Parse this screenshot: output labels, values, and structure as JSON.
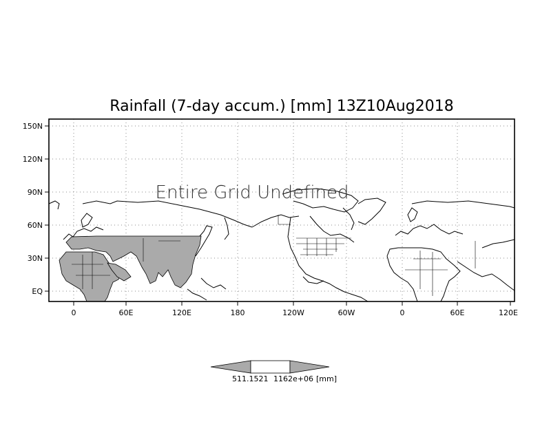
{
  "map": {
    "title": "Rainfall (7-day accum.) [mm] 13Z10Aug2018",
    "overlay_text": "Entire Grid Undefined",
    "lat_labels": [
      "150N",
      "120N",
      "90N",
      "60N",
      "30N",
      "EQ"
    ],
    "lon_labels": [
      "0",
      "60E",
      "120E",
      "180",
      "120W",
      "60W",
      "0",
      "60E",
      "120E"
    ],
    "land_fill_color": "#aaaaaa",
    "coast_color": "#000000",
    "grid_style": "dotted"
  },
  "colorbar": {
    "label_left": "511.1521",
    "label_right": "1162e+06",
    "unit": "[mm]",
    "arrow_color": "#aaaaaa"
  }
}
